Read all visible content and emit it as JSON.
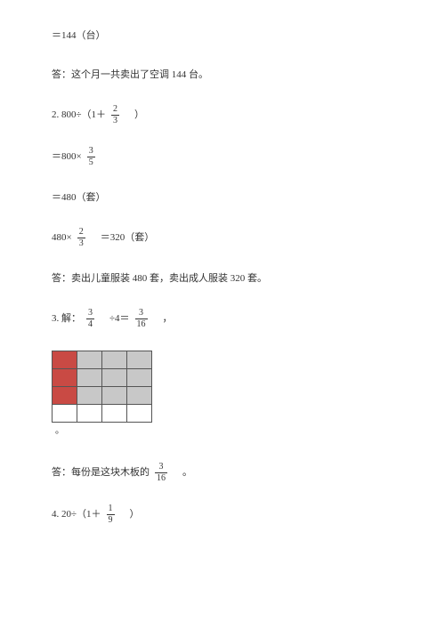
{
  "line1": "＝144（台）",
  "line2": "答：这个月一共卖出了空调 144 台。",
  "p2": {
    "pre": "2. 800÷（1＋",
    "frac": {
      "num": "2",
      "den": "3"
    },
    "post": "　）"
  },
  "p2_step": {
    "pre": "＝800×",
    "frac": {
      "num": "3",
      "den": "5"
    }
  },
  "p2_res": "＝480（套）",
  "p2_mul": {
    "pre": "480×",
    "frac": {
      "num": "2",
      "den": "3"
    },
    "post": "　＝320（套）"
  },
  "p2_ans": "答：卖出儿童服装 480 套，卖出成人服装 320 套。",
  "p3": {
    "pre": "3. 解：",
    "f1": {
      "num": "3",
      "den": "4"
    },
    "mid": "　÷4＝",
    "f2": {
      "num": "3",
      "den": "16"
    },
    "end": "　，"
  },
  "grid": {
    "rows": 4,
    "cols": 4,
    "cells": [
      [
        "red",
        "gray",
        "gray",
        "gray"
      ],
      [
        "red",
        "gray",
        "gray",
        "gray"
      ],
      [
        "red",
        "gray",
        "gray",
        "gray"
      ],
      [
        "white",
        "white",
        "white",
        "white"
      ]
    ],
    "colors": {
      "red": "#c94a44",
      "gray": "#c8c8c8",
      "white": "#ffffff"
    },
    "trail": "。"
  },
  "p3_ans": {
    "pre": "答：每份是这块木板的",
    "frac": {
      "num": "3",
      "den": "16"
    },
    "post": "　。"
  },
  "p4": {
    "pre": "4. 20÷（1＋",
    "frac": {
      "num": "1",
      "den": "9"
    },
    "post": "　）"
  }
}
